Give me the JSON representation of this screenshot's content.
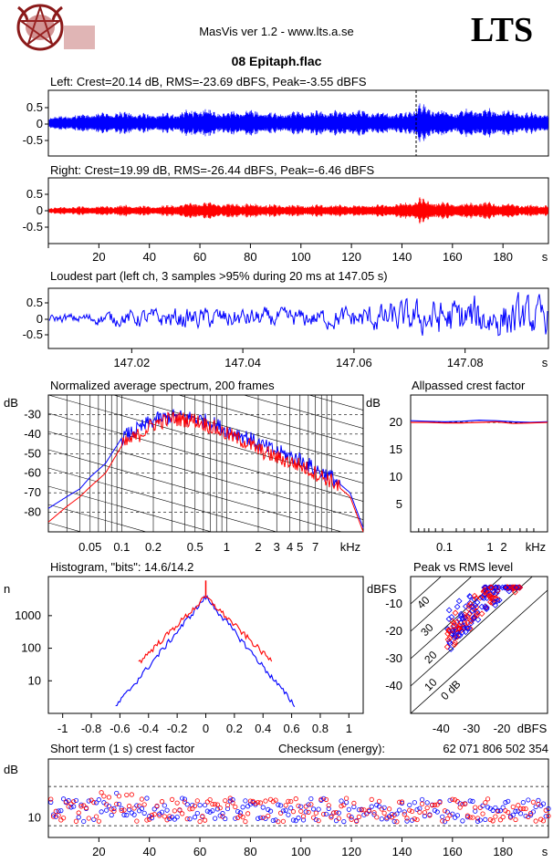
{
  "header": {
    "app": "MasVis ver 1.2 - www.lts.a.se",
    "brand": "LTS",
    "file": "08 Epitaph.flac"
  },
  "colors": {
    "left": "#0000ff",
    "right": "#ff0000",
    "axis": "#000000"
  },
  "chart_data": [
    {
      "id": "left-waveform",
      "type": "line",
      "title": "Left: Crest=20.14 dB, RMS=-23.69 dBFS, Peak=-3.55 dBFS",
      "ylim": [
        -1,
        1
      ],
      "yticks": [
        "0.5",
        "0",
        "-0.5"
      ],
      "marker_time_s": 147.05,
      "envelope_x_s": [
        0,
        10,
        20,
        30,
        40,
        50,
        60,
        70,
        80,
        90,
        100,
        110,
        120,
        130,
        140,
        145,
        147,
        150,
        160,
        170,
        180,
        190,
        198
      ],
      "envelope_peak": [
        0.2,
        0.3,
        0.35,
        0.4,
        0.3,
        0.35,
        0.5,
        0.4,
        0.45,
        0.35,
        0.4,
        0.4,
        0.45,
        0.4,
        0.35,
        0.55,
        0.66,
        0.55,
        0.4,
        0.5,
        0.45,
        0.35,
        0.35
      ]
    },
    {
      "id": "right-waveform",
      "type": "line",
      "title": "Right: Crest=19.99 dB, RMS=-26.44 dBFS, Peak=-6.46 dBFS",
      "ylim": [
        -1,
        1
      ],
      "yticks": [
        "0.5",
        "0",
        "-0.5"
      ],
      "xticks": [
        "20",
        "40",
        "60",
        "80",
        "100",
        "120",
        "140",
        "160",
        "180",
        "s"
      ],
      "envelope_x_s": [
        0,
        10,
        20,
        30,
        40,
        50,
        60,
        70,
        80,
        90,
        100,
        110,
        120,
        130,
        140,
        145,
        147,
        150,
        160,
        170,
        180,
        190,
        198
      ],
      "envelope_peak": [
        0.1,
        0.15,
        0.15,
        0.2,
        0.15,
        0.2,
        0.3,
        0.25,
        0.25,
        0.2,
        0.2,
        0.2,
        0.2,
        0.2,
        0.25,
        0.35,
        0.45,
        0.35,
        0.25,
        0.3,
        0.25,
        0.2,
        0.2
      ]
    },
    {
      "id": "loudest-part",
      "type": "line",
      "title": "Loudest part (left  ch, 3 samples >95% during 20 ms at 147.05 s)",
      "ylim": [
        -1,
        1
      ],
      "yticks": [
        "0.5",
        "0",
        "-0.5"
      ],
      "xticks": [
        "147.02",
        "147.04",
        "147.06",
        "147.08",
        "s"
      ],
      "xlim": [
        147.005,
        147.095
      ]
    },
    {
      "id": "spectrum",
      "type": "line",
      "title": "Normalized average spectrum, 200 frames",
      "ylabel": "dB",
      "xlabel": "kHz",
      "yticks": [
        "-30",
        "-40",
        "-50",
        "-60",
        "-70",
        "-80"
      ],
      "xticks": [
        "0.05",
        "0.1",
        "0.2",
        "0.5",
        "1",
        "2",
        "3",
        "4",
        "5",
        "7",
        "kHz"
      ],
      "freq_khz": [
        0.02,
        0.03,
        0.04,
        0.05,
        0.07,
        0.1,
        0.15,
        0.2,
        0.3,
        0.5,
        0.7,
        1,
        1.5,
        2,
        3,
        5,
        7,
        10,
        15,
        20
      ],
      "series": [
        {
          "name": "Left",
          "values": [
            -78,
            -72,
            -68,
            -62,
            -55,
            -42,
            -37,
            -33,
            -31,
            -32,
            -34,
            -38,
            -41,
            -45,
            -49,
            -53,
            -58,
            -62,
            -70,
            -88
          ]
        },
        {
          "name": "Right",
          "values": [
            -85,
            -77,
            -72,
            -67,
            -60,
            -46,
            -40,
            -35,
            -32,
            -33,
            -36,
            -40,
            -44,
            -48,
            -52,
            -56,
            -60,
            -64,
            -72,
            -90
          ]
        }
      ]
    },
    {
      "id": "allpass-crest",
      "type": "line",
      "title": "Allpassed crest factor",
      "ylabel": "dB",
      "xlabel": "kHz",
      "yticks": [
        "20",
        "15",
        "10",
        "5"
      ],
      "xticks": [
        "0.1",
        "1",
        "2",
        "kHz"
      ],
      "series": [
        {
          "name": "Left",
          "values": [
            20.3,
            20.2,
            20.1,
            20.2,
            20.4,
            20.3,
            20.1,
            20.0,
            20.1
          ]
        },
        {
          "name": "Right",
          "values": [
            20.0,
            20.0,
            19.9,
            19.9,
            20.0,
            20.1,
            19.8,
            19.9,
            20.0
          ]
        }
      ]
    },
    {
      "id": "histogram",
      "type": "line",
      "title": "Histogram, \"bits\": 14.6/14.2",
      "ylabel": "n",
      "yticks": [
        "1000",
        "100",
        "10"
      ],
      "xticks": [
        "-1",
        "-0.8",
        "-0.6",
        "-0.4",
        "-0.2",
        "0",
        "0.2",
        "0.4",
        "0.6",
        "0.8",
        "1"
      ],
      "xlim": [
        -1.1,
        1.1
      ]
    },
    {
      "id": "peak-vs-rms",
      "type": "scatter",
      "title": "Peak vs RMS level",
      "ylabel": "dBFS",
      "xlabel": "dBFS",
      "yticks": [
        "-10",
        "-20",
        "-30",
        "-40"
      ],
      "xticks": [
        "-40",
        "-30",
        "-20",
        "dBFS"
      ],
      "diagonal_labels": [
        "40",
        "30",
        "20",
        "10",
        "0 dB"
      ]
    },
    {
      "id": "short-term-crest",
      "type": "scatter",
      "title": "Short term (1 s) crest factor",
      "ylabel": "dB",
      "yticks": [
        "10"
      ],
      "xticks": [
        "20",
        "40",
        "60",
        "80",
        "100",
        "120",
        "140",
        "160",
        "180",
        "s"
      ],
      "checksum_label": "Checksum (energy):",
      "checksum_value": "62 071 806 502 354"
    }
  ]
}
